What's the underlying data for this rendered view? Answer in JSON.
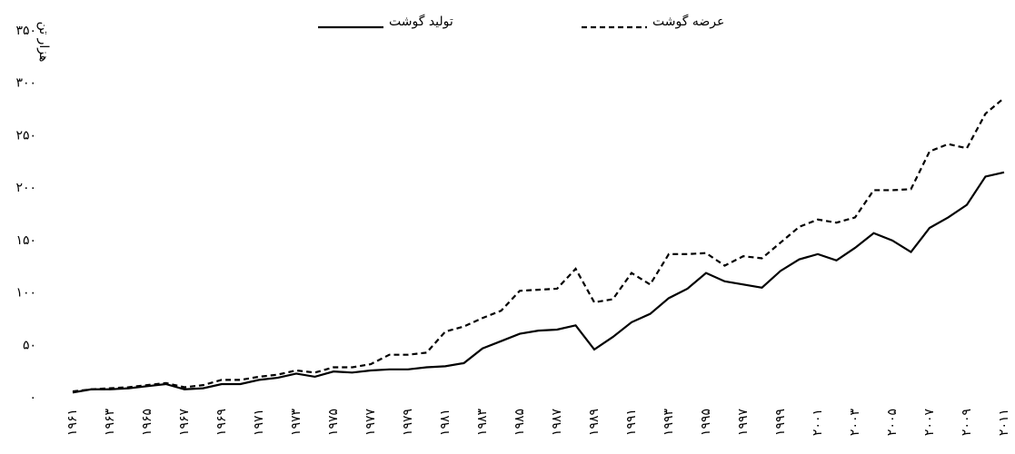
{
  "chart_data": {
    "type": "line",
    "y_axis_label": "هزار تن",
    "categories": [
      "۱۹۶۱",
      null,
      "۱۹۶۳",
      null,
      "۱۹۶۵",
      null,
      "۱۹۶۷",
      null,
      "۱۹۶۹",
      null,
      "۱۹۷۱",
      null,
      "۱۹۷۳",
      null,
      "۱۹۷۵",
      null,
      "۱۹۷۷",
      null,
      "۱۹۷۹",
      null,
      "۱۹۸۱",
      null,
      "۱۹۸۳",
      null,
      "۱۹۸۵",
      null,
      "۱۹۸۷",
      null,
      "۱۹۸۹",
      null,
      "۱۹۹۱",
      null,
      "۱۹۹۳",
      null,
      "۱۹۹۵",
      null,
      "۱۹۹۷",
      null,
      "۱۹۹۹",
      null,
      "۲۰۰۱",
      null,
      "۲۰۰۳",
      null,
      "۲۰۰۵",
      null,
      "۲۰۰۷",
      null,
      "۲۰۰۹",
      null,
      "۲۰۱۱"
    ],
    "series": [
      {
        "name": "عرضه گوشت",
        "color": "#000000",
        "dashed": true,
        "values": [
          6,
          8,
          9,
          10,
          12,
          14,
          10,
          12,
          17,
          17,
          20,
          22,
          26,
          24,
          29,
          29,
          32,
          41,
          41,
          43,
          63,
          68,
          76,
          83,
          102,
          103,
          104,
          123,
          91,
          94,
          119,
          108,
          137,
          137,
          138,
          126,
          135,
          133,
          148,
          163,
          170,
          167,
          172,
          198,
          198,
          199,
          235,
          242,
          238,
          271,
          286
        ]
      },
      {
        "name": "تولید گوشت",
        "color": "#000000",
        "dashed": false,
        "values": [
          5,
          8,
          8,
          9,
          11,
          13,
          8,
          9,
          13,
          13,
          17,
          19,
          23,
          20,
          25,
          24,
          26,
          27,
          27,
          29,
          30,
          33,
          47,
          54,
          61,
          64,
          65,
          69,
          46,
          58,
          72,
          80,
          95,
          104,
          119,
          111,
          108,
          105,
          121,
          132,
          137,
          131,
          143,
          157,
          150,
          139,
          162,
          172,
          184,
          211,
          215
        ]
      }
    ],
    "ylim": [
      0,
      350
    ],
    "yticks": [
      {
        "value": 0,
        "label": "۰"
      },
      {
        "value": 50,
        "label": "۵۰"
      },
      {
        "value": 100,
        "label": "۱۰۰"
      },
      {
        "value": 150,
        "label": "۱۵۰"
      },
      {
        "value": 200,
        "label": "۲۰۰"
      },
      {
        "value": 250,
        "label": "۲۵۰"
      },
      {
        "value": 300,
        "label": "۳۰۰"
      },
      {
        "value": 350,
        "label": "۳۵۰"
      }
    ],
    "grid": false
  }
}
